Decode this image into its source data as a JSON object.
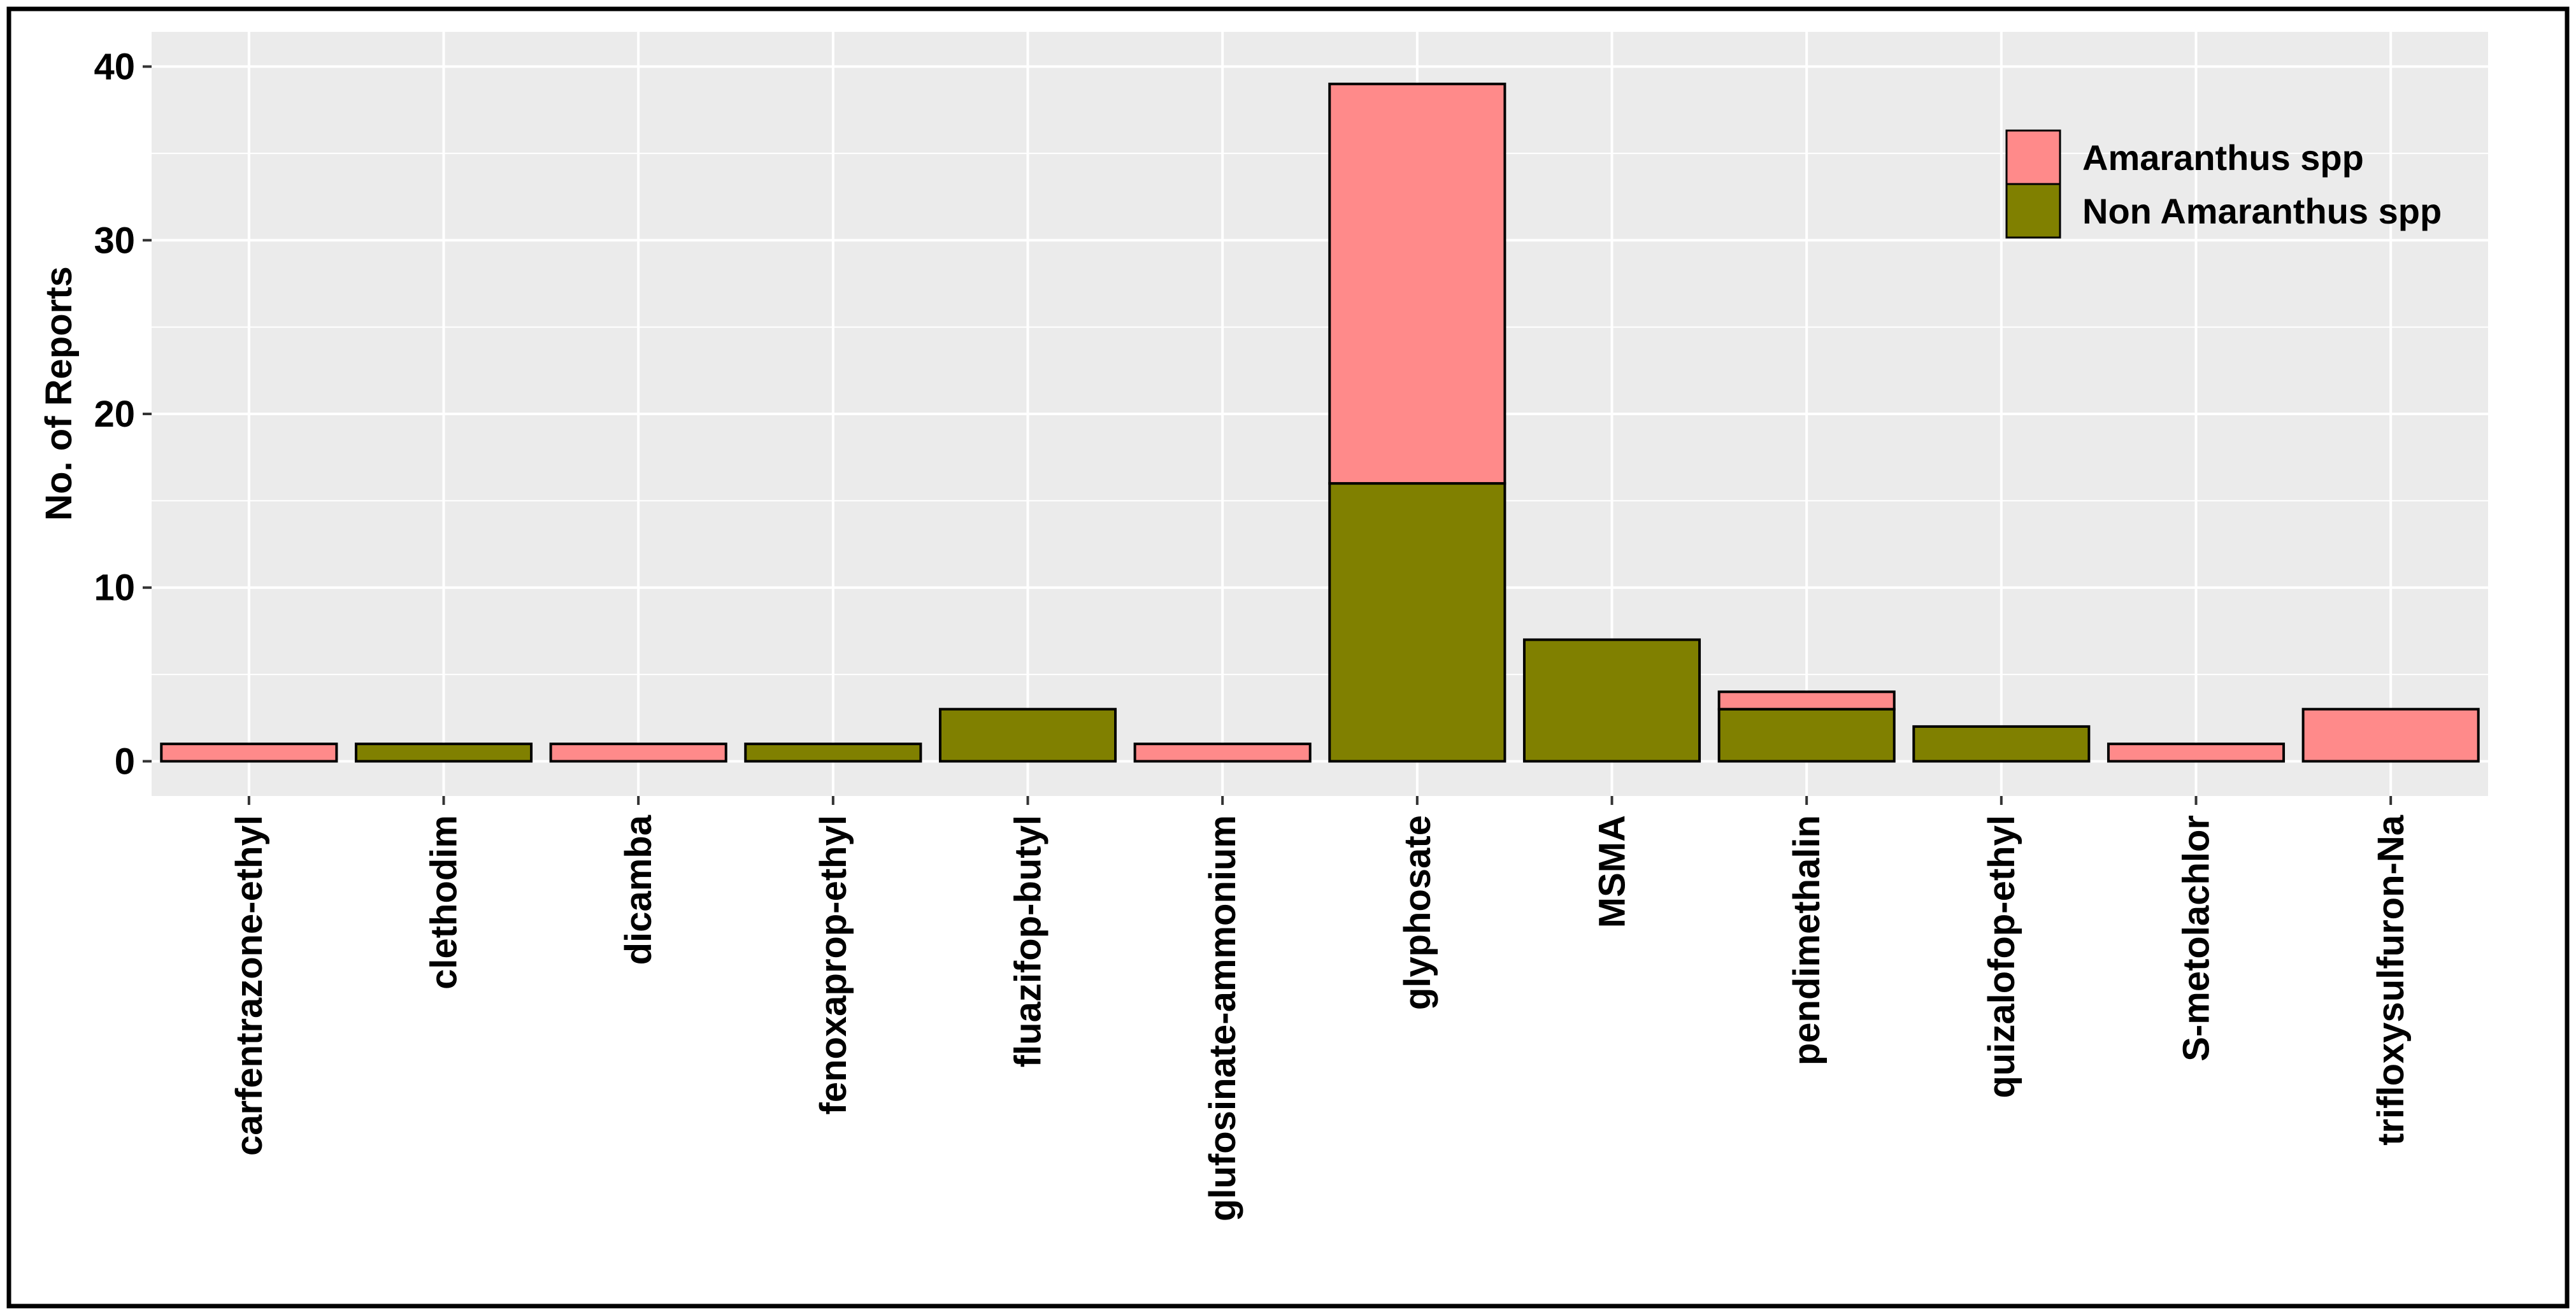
{
  "chart_data": {
    "type": "bar",
    "stacked": true,
    "categories": [
      "carfentrazone-ethyl",
      "clethodim",
      "dicamba",
      "fenoxaprop-ethyl",
      "fluazifop-butyl",
      "glufosinate-ammonium",
      "glyphosate",
      "MSMA",
      "pendimethalin",
      "quizalofop-ethyl",
      "S-metolachlor",
      "trifloxysulfuron-Na"
    ],
    "series": [
      {
        "name": "Non Amaranthus spp",
        "color": "#808000",
        "values": [
          0,
          1,
          0,
          1,
          3,
          0,
          16,
          7,
          3,
          2,
          0,
          0
        ]
      },
      {
        "name": "Amaranthus spp",
        "color": "#FF8A8A",
        "values": [
          1,
          0,
          1,
          0,
          0,
          1,
          23,
          0,
          1,
          0,
          1,
          3
        ]
      }
    ],
    "ylabel": "No. of Reports",
    "ylim": [
      -2,
      42
    ],
    "yticks": [
      0,
      10,
      20,
      30,
      40
    ],
    "grid": true,
    "legend_position": "top-right",
    "legend_order": [
      "Amaranthus spp",
      "Non Amaranthus spp"
    ],
    "panel_background": "#EBEBEB",
    "grid_color": "#FFFFFF"
  }
}
